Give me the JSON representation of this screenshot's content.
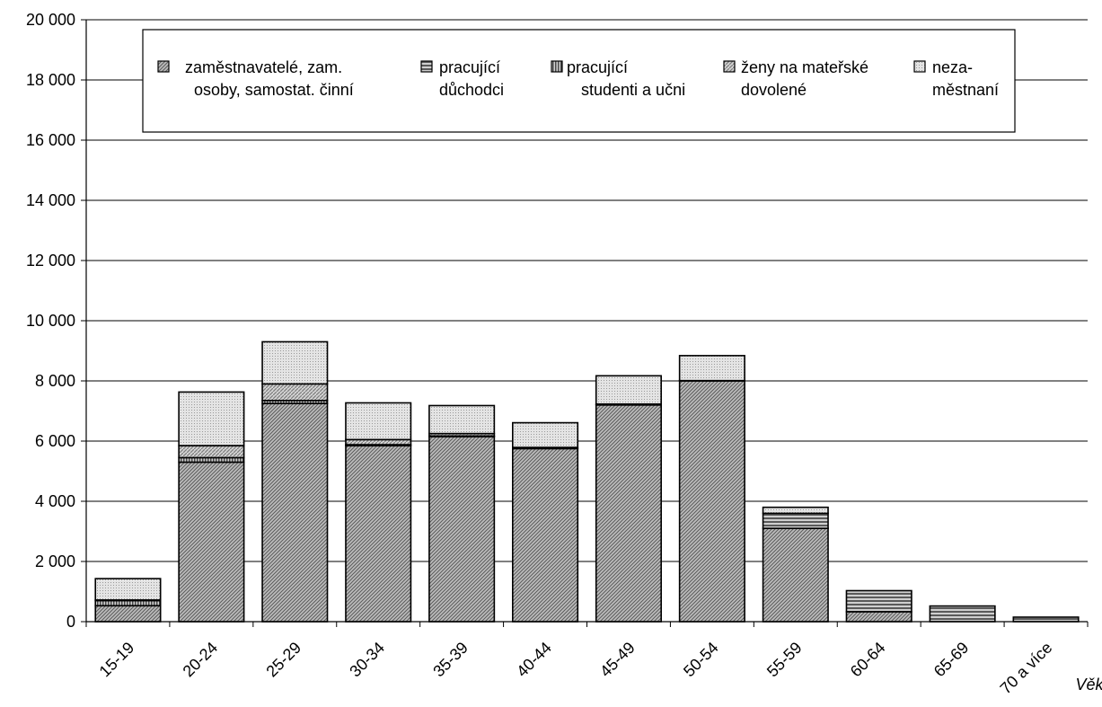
{
  "chart_data": {
    "type": "bar",
    "stacked": true,
    "title": "",
    "xlabel": "Věk",
    "ylabel": "",
    "ylim": [
      0,
      20000
    ],
    "y_ticks": [
      "0",
      "2 000",
      "4 000",
      "6 000",
      "8 000",
      "10 000",
      "12 000",
      "14 000",
      "16 000",
      "18 000",
      "20 000"
    ],
    "grid": true,
    "legend_position": "top",
    "categories": [
      "15-19",
      "20-24",
      "25-29",
      "30-34",
      "35-39",
      "40-44",
      "45-49",
      "50-54",
      "55-59",
      "60-64",
      "65-69",
      "70 a více"
    ],
    "series": [
      {
        "name_lines": [
          "zaměstnavatelé, zam.",
          "osoby, samostat. činní"
        ],
        "pattern": "diag-dense",
        "color": "#9a9a9a",
        "values": [
          530,
          5300,
          7250,
          5850,
          6150,
          5750,
          7200,
          8000,
          3100,
          330,
          0,
          0
        ]
      },
      {
        "name_lines": [
          "pracující",
          "důchodci"
        ],
        "pattern": "horizontal",
        "color": "#7a7a7a",
        "values": [
          0,
          0,
          0,
          0,
          0,
          0,
          0,
          0,
          500,
          700,
          520,
          150
        ]
      },
      {
        "name_lines": [
          "pracující",
          "studenti a učni"
        ],
        "pattern": "vertical",
        "color": "#6e6e6e",
        "values": [
          170,
          150,
          100,
          30,
          20,
          10,
          10,
          10,
          0,
          0,
          0,
          0
        ]
      },
      {
        "name_lines": [
          "ženy na mateřské",
          "dovolené"
        ],
        "pattern": "diag-medium",
        "color": "#a8a8a8",
        "values": [
          20,
          400,
          550,
          170,
          80,
          30,
          20,
          0,
          0,
          0,
          0,
          0
        ]
      },
      {
        "name_lines": [
          "neza-",
          "městnaní"
        ],
        "pattern": "dots-light",
        "color": "#cfcfcf",
        "values": [
          710,
          1780,
          1400,
          1220,
          930,
          820,
          940,
          830,
          200,
          0,
          0,
          0
        ]
      }
    ]
  }
}
